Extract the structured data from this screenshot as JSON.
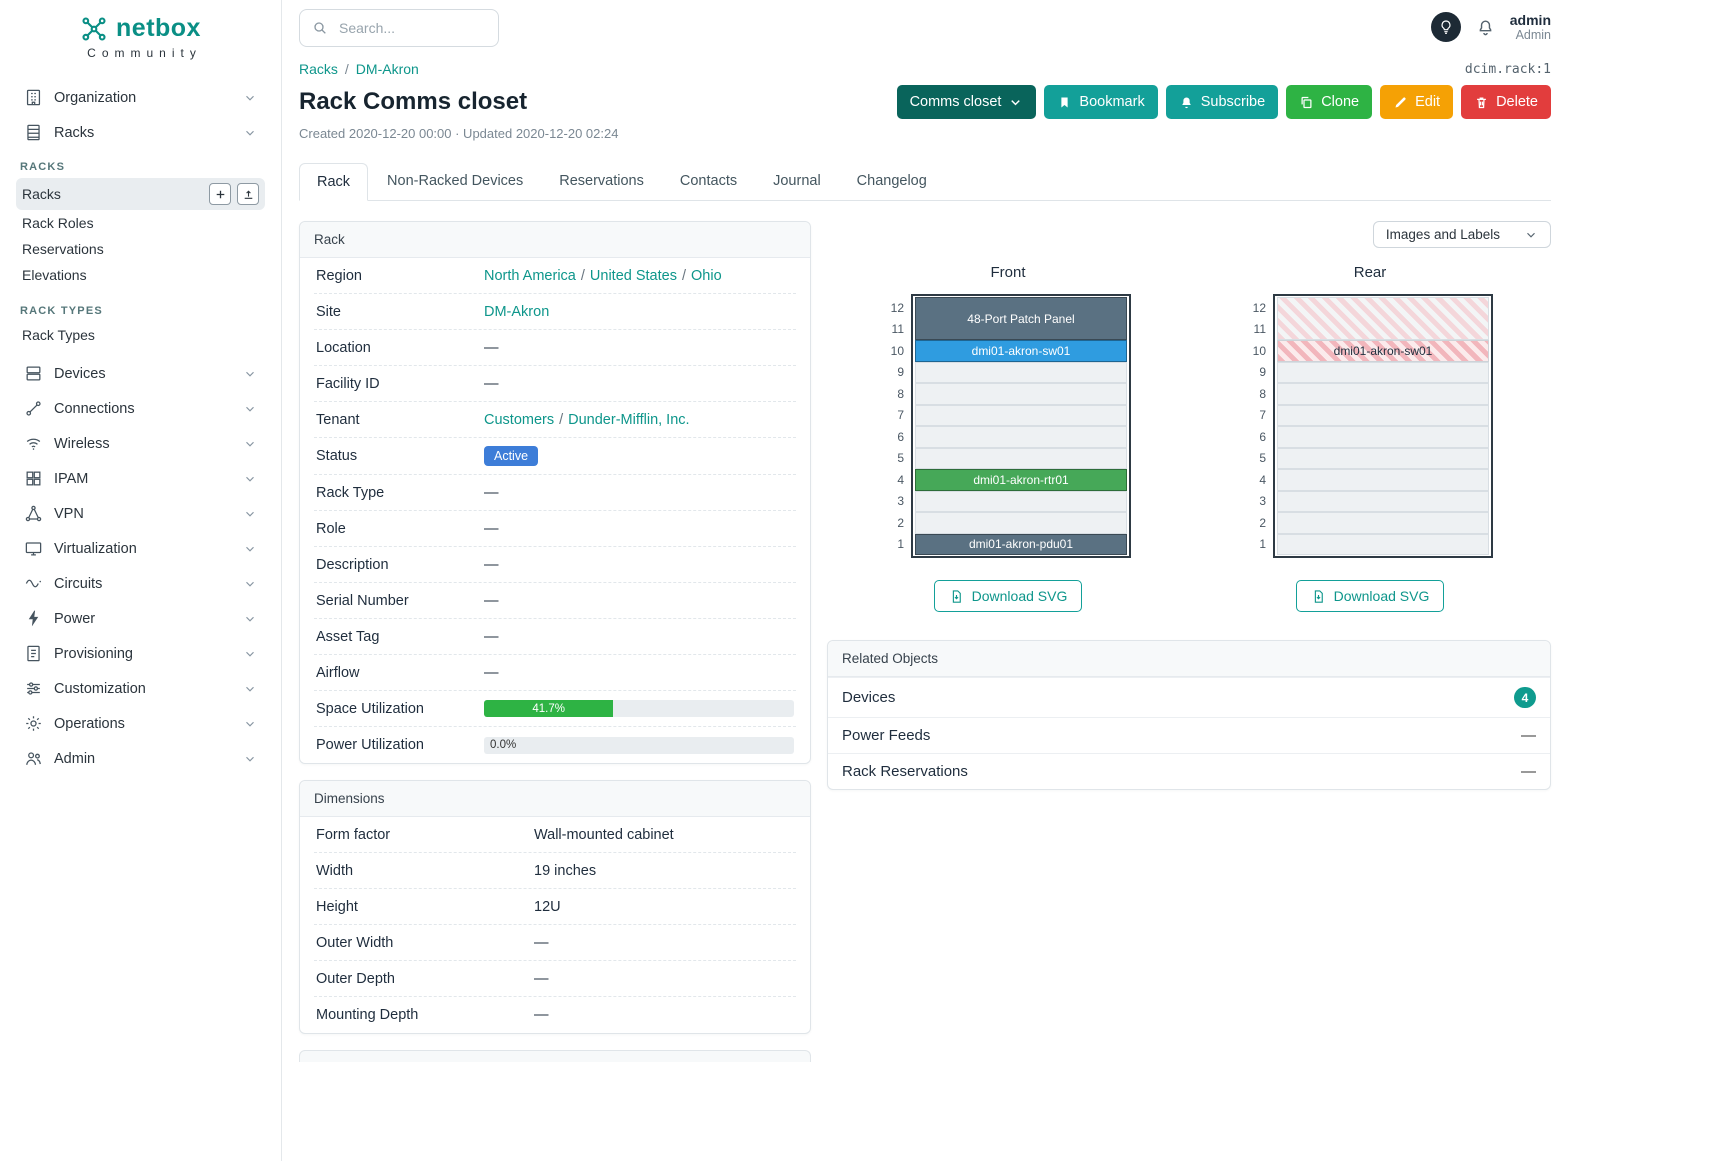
{
  "colors": {
    "accent_teal": "#0e968b",
    "button_teal": "#13a099",
    "closet_dark_teal": "#09645b",
    "clone_green": "#2eb344",
    "edit_amber": "#f5a105",
    "delete_red": "#e23d3d",
    "active_badge_blue": "#3d7dd8",
    "utilization_green": "#2eb344",
    "device_slate": "#5a7182",
    "device_blue": "#2f9ce0",
    "device_green": "#46a858"
  },
  "topbar": {
    "search_placeholder": "Search...",
    "user_name": "admin",
    "user_role": "Admin"
  },
  "sidebar": {
    "logo": "netbox",
    "logo_subtitle": "Community",
    "items": [
      {
        "label": "Organization"
      },
      {
        "label": "Racks"
      },
      {
        "label": "Devices"
      },
      {
        "label": "Connections"
      },
      {
        "label": "Wireless"
      },
      {
        "label": "IPAM"
      },
      {
        "label": "VPN"
      },
      {
        "label": "Virtualization"
      },
      {
        "label": "Circuits"
      },
      {
        "label": "Power"
      },
      {
        "label": "Provisioning"
      },
      {
        "label": "Customization"
      },
      {
        "label": "Operations"
      },
      {
        "label": "Admin"
      }
    ],
    "group": {
      "heading_racks": "RACKS",
      "racks": "Racks",
      "rack_roles": "Rack Roles",
      "reservations": "Reservations",
      "elevations": "Elevations",
      "heading_rack_types": "RACK TYPES",
      "rack_types": "Rack Types"
    }
  },
  "breadcrumb": {
    "racks": "Racks",
    "site": "DM-Akron",
    "object_id": "dcim.rack:1"
  },
  "page": {
    "title": "Rack Comms closet",
    "meta": "Created 2020-12-20 00:00 · Updated 2020-12-20 02:24"
  },
  "actions": {
    "closet": "Comms closet",
    "bookmark": "Bookmark",
    "subscribe": "Subscribe",
    "clone": "Clone",
    "edit": "Edit",
    "delete": "Delete"
  },
  "tabs": [
    "Rack",
    "Non-Racked Devices",
    "Reservations",
    "Contacts",
    "Journal",
    "Changelog"
  ],
  "rack_card": {
    "header": "Rack",
    "rows": {
      "region": {
        "label": "Region",
        "links": [
          "North America",
          "United States",
          "Ohio"
        ]
      },
      "site": {
        "label": "Site",
        "link": "DM-Akron"
      },
      "location": {
        "label": "Location",
        "value": "—"
      },
      "facility": {
        "label": "Facility ID",
        "value": "—"
      },
      "tenant": {
        "label": "Tenant",
        "links": [
          "Customers",
          "Dunder-Mifflin, Inc."
        ]
      },
      "status": {
        "label": "Status",
        "badge": "Active"
      },
      "rack_type": {
        "label": "Rack Type",
        "value": "—"
      },
      "role": {
        "label": "Role",
        "value": "—"
      },
      "description": {
        "label": "Description",
        "value": "—"
      },
      "serial": {
        "label": "Serial Number",
        "value": "—"
      },
      "asset_tag": {
        "label": "Asset Tag",
        "value": "—"
      },
      "airflow": {
        "label": "Airflow",
        "value": "—"
      },
      "space": {
        "label": "Space Utilization",
        "value": "41.7%",
        "percent": 41.7
      },
      "power": {
        "label": "Power Utilization",
        "value": "0.0%",
        "percent": 0
      }
    }
  },
  "dimensions_card": {
    "header": "Dimensions",
    "rows": [
      {
        "label": "Form factor",
        "value": "Wall-mounted cabinet"
      },
      {
        "label": "Width",
        "value": "19 inches"
      },
      {
        "label": "Height",
        "value": "12U"
      },
      {
        "label": "Outer Width",
        "value": "—"
      },
      {
        "label": "Outer Depth",
        "value": "—"
      },
      {
        "label": "Mounting Depth",
        "value": "—"
      }
    ]
  },
  "elevation": {
    "images_labels": "Images and Labels",
    "front_title": "Front",
    "rear_title": "Rear",
    "units": [
      "12",
      "11",
      "10",
      "9",
      "8",
      "7",
      "6",
      "5",
      "4",
      "3",
      "2",
      "1"
    ],
    "front_devices": {
      "patch_panel": "48-Port Patch Panel",
      "sw": "dmi01-akron-sw01",
      "rtr": "dmi01-akron-rtr01",
      "pdu": "dmi01-akron-pdu01"
    },
    "rear_devices": {
      "sw": "dmi01-akron-sw01"
    },
    "download": "Download SVG"
  },
  "related": {
    "header": "Related Objects",
    "devices": {
      "label": "Devices",
      "count": "4"
    },
    "power_feeds": {
      "label": "Power Feeds",
      "value": "—"
    },
    "rack_reservations": {
      "label": "Rack Reservations",
      "value": "—"
    }
  }
}
